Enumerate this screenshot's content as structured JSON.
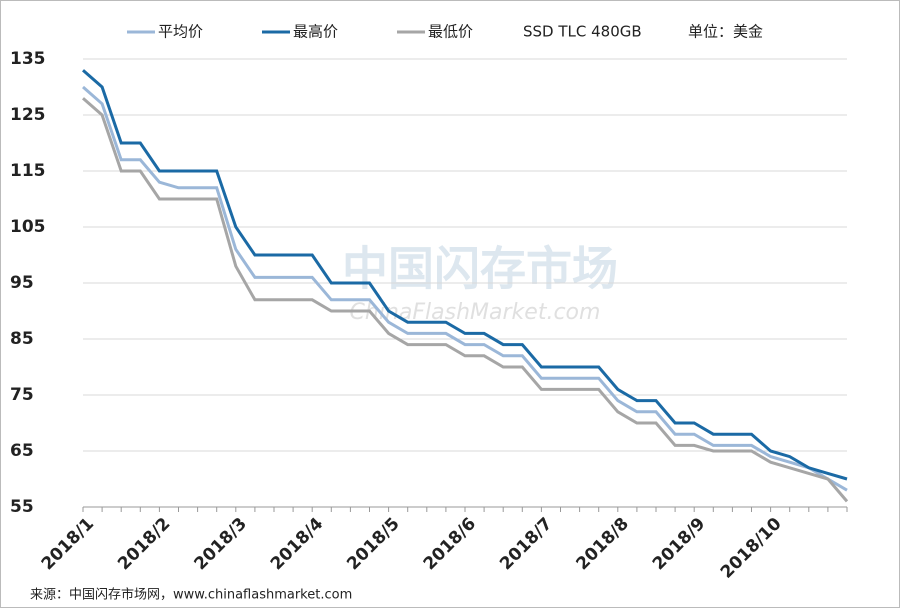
{
  "chart_data": {
    "type": "line",
    "legend_text": [
      "SSD TLC 480GB",
      "单位：美金"
    ],
    "watermark": [
      "中国闪存市场",
      "ChinaFlashMarket.com"
    ],
    "source": "来源：中国闪存市场网，www.chinaflashmarket.com",
    "categories": [
      "2018/1",
      null,
      null,
      null,
      "2018/2",
      null,
      null,
      null,
      "2018/3",
      null,
      null,
      null,
      "2018/4",
      null,
      null,
      null,
      "2018/5",
      null,
      null,
      null,
      "2018/6",
      null,
      null,
      null,
      "2018/7",
      null,
      null,
      null,
      "2018/8",
      null,
      null,
      null,
      "2018/9",
      null,
      null,
      null,
      "2018/10",
      null,
      null,
      null,
      null
    ],
    "series": [
      {
        "name": "平均价",
        "color": "#9bb7d8",
        "values": [
          130,
          127,
          117,
          117,
          113,
          112,
          112,
          112,
          101,
          96,
          96,
          96,
          96,
          92,
          92,
          92,
          88,
          86,
          86,
          86,
          84,
          84,
          82,
          82,
          78,
          78,
          78,
          78,
          74,
          72,
          72,
          68,
          68,
          66,
          66,
          66,
          64,
          63,
          62,
          60,
          58
        ]
      },
      {
        "name": "最高价",
        "color": "#1b6aa5",
        "values": [
          133,
          130,
          120,
          120,
          115,
          115,
          115,
          115,
          105,
          100,
          100,
          100,
          100,
          95,
          95,
          95,
          90,
          88,
          88,
          88,
          86,
          86,
          84,
          84,
          80,
          80,
          80,
          80,
          76,
          74,
          74,
          70,
          70,
          68,
          68,
          68,
          65,
          64,
          62,
          61,
          60
        ]
      },
      {
        "name": "最低价",
        "color": "#a6a6a6",
        "values": [
          128,
          125,
          115,
          115,
          110,
          110,
          110,
          110,
          98,
          92,
          92,
          92,
          92,
          90,
          90,
          90,
          86,
          84,
          84,
          84,
          82,
          82,
          80,
          80,
          76,
          76,
          76,
          76,
          72,
          70,
          70,
          66,
          66,
          65,
          65,
          65,
          63,
          62,
          61,
          60,
          56
        ]
      }
    ],
    "ylim": [
      55,
      135
    ],
    "yticks": [
      55,
      65,
      75,
      85,
      95,
      105,
      115,
      125,
      135
    ],
    "grid": true
  }
}
